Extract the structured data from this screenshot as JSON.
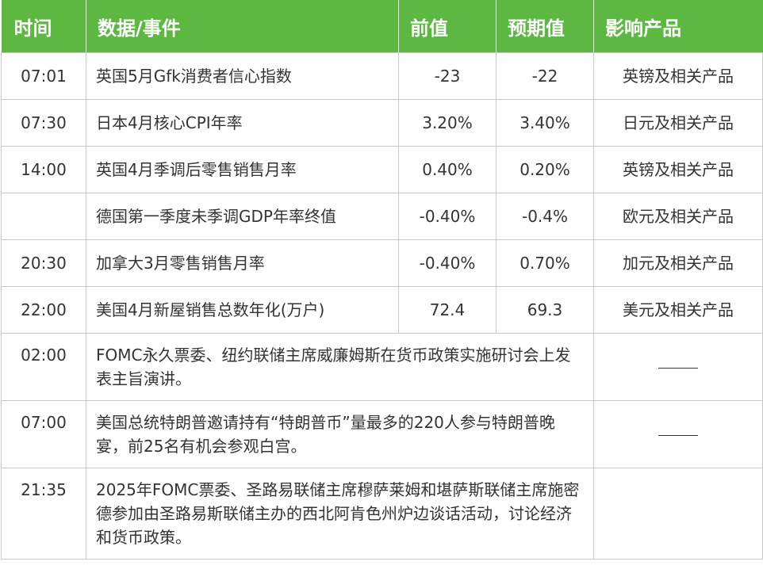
{
  "headers": {
    "time": "时间",
    "event": "数据/事件",
    "prev": "前值",
    "expected": "预期值",
    "products": "影响产品"
  },
  "rows": [
    {
      "time": "07:01",
      "event": "英国5月Gfk消费者信心指数",
      "prev": "-23",
      "expected": "-22",
      "products": "英镑及相关产品"
    },
    {
      "time": "07:30",
      "event": "日本4月核心CPI年率",
      "prev": "3.20%",
      "expected": "3.40%",
      "products": "日元及相关产品"
    },
    {
      "time": "14:00",
      "event": "英国4月季调后零售销售月率",
      "prev": "0.40%",
      "expected": "0.20%",
      "products": "英镑及相关产品"
    },
    {
      "time": "",
      "event": "德国第一季度未季调GDP年率终值",
      "prev": "-0.40%",
      "expected": "-0.4%",
      "products": "欧元及相关产品"
    },
    {
      "time": "20:30",
      "event": "加拿大3月零售销售月率",
      "prev": "-0.40%",
      "expected": "0.70%",
      "products": "加元及相关产品"
    },
    {
      "time": "22:00",
      "event": "美国4月新屋销售总数年化(万户)",
      "prev": "72.4",
      "expected": "69.3",
      "products": "美元及相关产品"
    }
  ],
  "events": [
    {
      "time": "02:00",
      "event": "FOMC永久票委、纽约联储主席威廉姆斯在货币政策实施研讨会上发表主旨演讲。",
      "products": "dash"
    },
    {
      "time": "07:00",
      "event": "美国总统特朗普邀请持有“特朗普币”量最多的220人参与特朗普晚宴，前25名有机会参观白宫。",
      "products": "dash"
    },
    {
      "time": "21:35",
      "event": "2025年FOMC票委、圣路易联储主席穆萨莱姆和堪萨斯联储主席施密德参加由圣路易斯联储主办的西北阿肯色州炉边谈话活动，讨论经济和货币政策。",
      "products": ""
    }
  ],
  "colors": {
    "header_bg": "#5cb841",
    "header_text": "#ffffff",
    "border": "#c8c8c8",
    "text": "#333333"
  }
}
